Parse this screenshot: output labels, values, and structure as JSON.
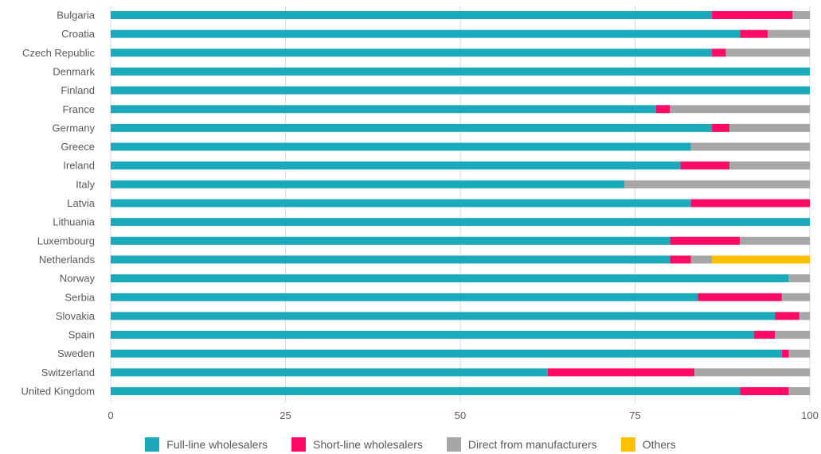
{
  "chart_data": {
    "type": "bar",
    "orientation": "horizontal",
    "stacked": true,
    "categories": [
      "Bulgaria",
      "Croatia",
      "Czech Republic",
      "Denmark",
      "Finland",
      "France",
      "Germany",
      "Greece",
      "Ireland",
      "Italy",
      "Latvia",
      "Lithuania",
      "Luxembourg",
      "Netherlands",
      "Norway",
      "Serbia",
      "Slovakia",
      "Spain",
      "Sweden",
      "Switzerland",
      "United Kingdom"
    ],
    "series": [
      {
        "name": "Full-line wholesalers",
        "color": "#1aaabb",
        "values": [
          86,
          90,
          86,
          100,
          100,
          78,
          86,
          83,
          81.5,
          73.5,
          83,
          100,
          80,
          80,
          97,
          84,
          95,
          92,
          96,
          62.5,
          90
        ]
      },
      {
        "name": "Short-line wholesalers",
        "color": "#ff0a64",
        "values": [
          11.5,
          4,
          2,
          0,
          0,
          2,
          2.5,
          0,
          7,
          0,
          17,
          0,
          10,
          3,
          0,
          12,
          3.5,
          3,
          1,
          21,
          7
        ]
      },
      {
        "name": "Direct from manufacturers",
        "color": "#a6a6a6",
        "values": [
          2.5,
          6,
          12,
          0,
          0,
          20,
          11.5,
          17,
          11.5,
          26.5,
          0,
          0,
          10,
          3,
          3,
          4,
          1.5,
          5,
          3,
          16.5,
          3
        ]
      },
      {
        "name": "Others",
        "color": "#ffc000",
        "values": [
          0,
          0,
          0,
          0,
          0,
          0,
          0,
          0,
          0,
          0,
          0,
          0,
          0,
          14,
          0,
          0,
          0,
          0,
          0,
          0,
          0
        ]
      }
    ],
    "xlim": [
      0,
      100
    ],
    "xticks": [
      "0",
      "25",
      "50",
      "75",
      "100"
    ],
    "grid": true,
    "legend_position": "bottom"
  }
}
